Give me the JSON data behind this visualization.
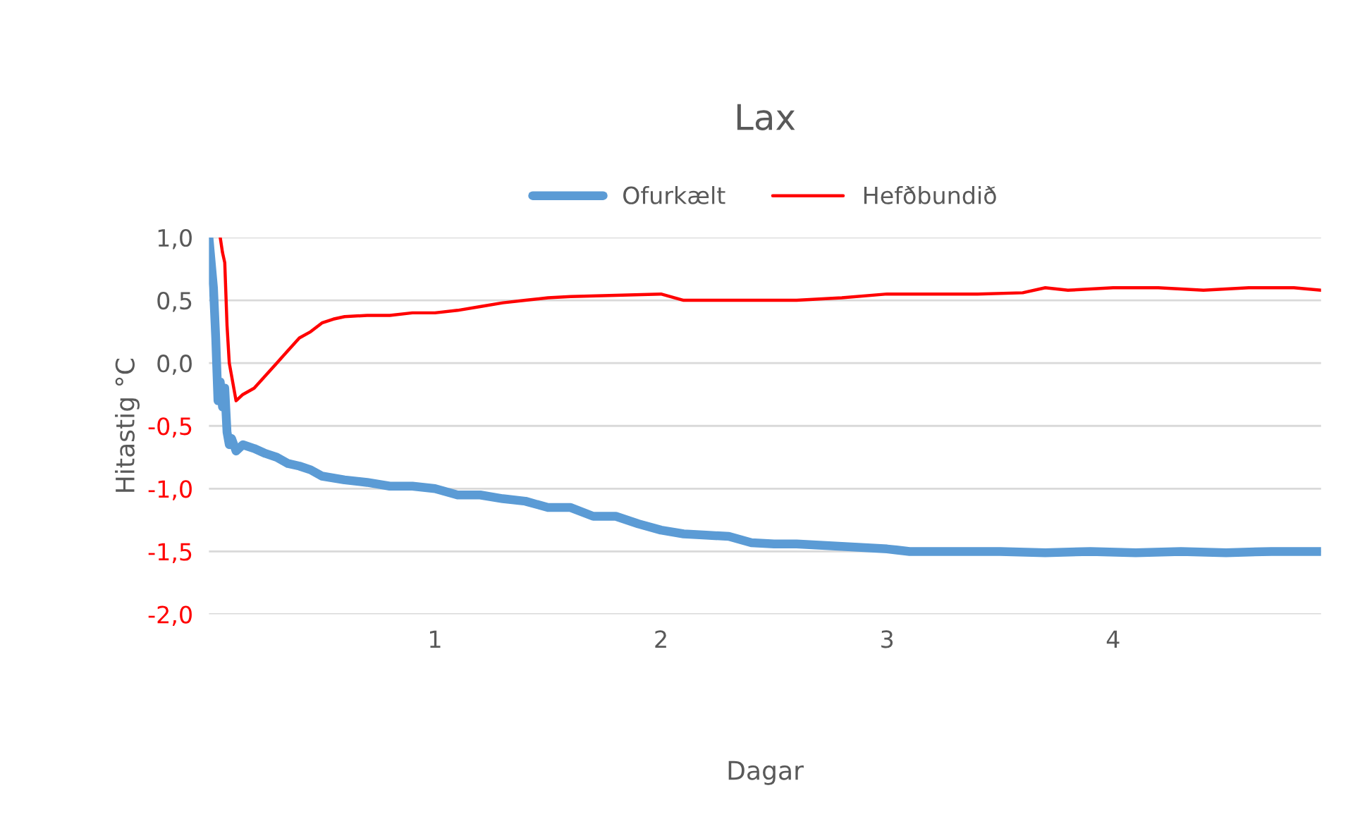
{
  "chart_data": {
    "type": "line",
    "title": "Lax",
    "xlabel": "Dagar",
    "ylabel": "Hitastig °C",
    "xlim": [
      0,
      4.92
    ],
    "xticks": [
      1,
      2,
      3,
      4
    ],
    "ylim": [
      -2.0,
      1.0
    ],
    "yticks": [
      {
        "value": 1.0,
        "label": "1,0"
      },
      {
        "value": 0.5,
        "label": "0,5"
      },
      {
        "value": 0.0,
        "label": "0,0"
      },
      {
        "value": -0.5,
        "label": "-0,5"
      },
      {
        "value": -1.0,
        "label": "-1,0"
      },
      {
        "value": -1.5,
        "label": "-1,5"
      },
      {
        "value": -2.0,
        "label": "-2,0"
      }
    ],
    "grid": "y",
    "legend": "top",
    "marker": "none",
    "line_style": "solid",
    "series": [
      {
        "name": "Ofurkælt",
        "color": "#5b9bd5",
        "x": [
          0,
          0.02,
          0.03,
          0.04,
          0.05,
          0.06,
          0.07,
          0.08,
          0.09,
          0.1,
          0.12,
          0.15,
          0.2,
          0.25,
          0.3,
          0.35,
          0.4,
          0.45,
          0.5,
          0.6,
          0.7,
          0.8,
          0.9,
          1.0,
          1.1,
          1.2,
          1.3,
          1.4,
          1.5,
          1.6,
          1.7,
          1.8,
          1.9,
          2.0,
          2.1,
          2.2,
          2.3,
          2.4,
          2.5,
          2.6,
          2.7,
          2.8,
          2.9,
          3.0,
          3.1,
          3.3,
          3.5,
          3.7,
          3.9,
          4.1,
          4.3,
          4.5,
          4.7,
          4.92
        ],
        "values": [
          1.0,
          0.6,
          0.2,
          -0.3,
          -0.15,
          -0.35,
          -0.2,
          -0.55,
          -0.65,
          -0.6,
          -0.7,
          -0.65,
          -0.68,
          -0.72,
          -0.75,
          -0.8,
          -0.82,
          -0.85,
          -0.9,
          -0.93,
          -0.95,
          -0.98,
          -0.98,
          -1.0,
          -1.05,
          -1.05,
          -1.08,
          -1.1,
          -1.15,
          -1.15,
          -1.22,
          -1.22,
          -1.28,
          -1.33,
          -1.36,
          -1.37,
          -1.38,
          -1.43,
          -1.44,
          -1.44,
          -1.45,
          -1.46,
          -1.47,
          -1.48,
          -1.5,
          -1.5,
          -1.5,
          -1.51,
          -1.5,
          -1.51,
          -1.5,
          -1.51,
          -1.5,
          -1.5
        ]
      },
      {
        "name": "Hefðbundið",
        "color": "#ff0000",
        "x": [
          0.05,
          0.06,
          0.07,
          0.08,
          0.09,
          0.1,
          0.12,
          0.15,
          0.2,
          0.25,
          0.3,
          0.35,
          0.4,
          0.45,
          0.5,
          0.55,
          0.6,
          0.7,
          0.8,
          0.9,
          1.0,
          1.1,
          1.2,
          1.3,
          1.4,
          1.5,
          1.6,
          1.8,
          2.0,
          2.1,
          2.2,
          2.4,
          2.6,
          2.8,
          3.0,
          3.2,
          3.4,
          3.6,
          3.7,
          3.8,
          4.0,
          4.2,
          4.4,
          4.6,
          4.8,
          4.92
        ],
        "values": [
          1.0,
          0.88,
          0.8,
          0.3,
          0.0,
          -0.1,
          -0.3,
          -0.25,
          -0.2,
          -0.1,
          0.0,
          0.1,
          0.2,
          0.25,
          0.32,
          0.35,
          0.37,
          0.38,
          0.38,
          0.4,
          0.4,
          0.42,
          0.45,
          0.48,
          0.5,
          0.52,
          0.53,
          0.54,
          0.55,
          0.5,
          0.5,
          0.5,
          0.5,
          0.52,
          0.55,
          0.55,
          0.55,
          0.56,
          0.6,
          0.58,
          0.6,
          0.6,
          0.58,
          0.6,
          0.6,
          0.58
        ]
      }
    ]
  }
}
